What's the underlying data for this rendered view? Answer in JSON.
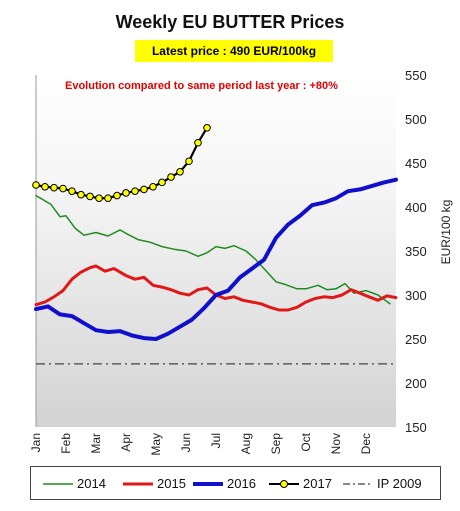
{
  "chart_data": {
    "type": "line",
    "title": "Weekly EU BUTTER Prices",
    "subtitle": "Latest price : 490 EUR/100kg",
    "annotation": "Evolution compared to same period last year : +80%",
    "ylabel": "EUR/100 kg",
    "ylim": [
      150,
      550
    ],
    "yticks": [
      "550",
      "500",
      "450",
      "400",
      "350",
      "300",
      "250",
      "200",
      "150"
    ],
    "categories": [
      "Jan",
      "Feb",
      "Mar",
      "Apr",
      "May",
      "Jun",
      "Jul",
      "Aug",
      "Sep",
      "Oct",
      "Nov",
      "Dec"
    ],
    "reference_line": {
      "name": "IP 2009",
      "value": 221.75
    },
    "series": [
      {
        "name": "2014",
        "color": "#1e8c1e",
        "style": "thin",
        "x": [
          0,
          0.5,
          0.8,
          1,
          1.3,
          1.6,
          2,
          2.4,
          2.8,
          3,
          3.4,
          3.8,
          4.2,
          4.6,
          5,
          5.4,
          5.7,
          6,
          6.3,
          6.6,
          7,
          7.3,
          7.6,
          8,
          8.3,
          8.7,
          9,
          9.4,
          9.7,
          10,
          10.3,
          10.6,
          11,
          11.4,
          11.8
        ],
        "values": [
          413,
          403,
          389,
          390,
          376,
          368,
          371,
          367,
          374,
          370,
          363,
          360,
          355,
          352,
          350,
          344,
          348,
          355,
          353,
          356,
          350,
          341,
          330,
          315,
          312,
          307,
          307,
          311,
          306,
          307,
          313,
          302,
          305,
          300,
          290
        ]
      },
      {
        "name": "2015",
        "color": "#e01818",
        "style": "medium",
        "x": [
          0,
          0.3,
          0.6,
          0.9,
          1.2,
          1.5,
          1.8,
          2,
          2.3,
          2.6,
          3,
          3.3,
          3.6,
          3.9,
          4.2,
          4.5,
          4.8,
          5.1,
          5.4,
          5.7,
          6,
          6.3,
          6.6,
          6.9,
          7.2,
          7.5,
          7.8,
          8.1,
          8.4,
          8.7,
          9,
          9.3,
          9.6,
          9.9,
          10.2,
          10.5,
          10.8,
          11.1,
          11.4,
          11.7,
          12
        ],
        "values": [
          289,
          292,
          298,
          305,
          318,
          326,
          331,
          333,
          327,
          330,
          322,
          318,
          320,
          311,
          309,
          306,
          302,
          300,
          306,
          308,
          300,
          296,
          298,
          294,
          292,
          290,
          286,
          283,
          283,
          286,
          292,
          296,
          298,
          297,
          300,
          306,
          302,
          298,
          294,
          299,
          297
        ]
      },
      {
        "name": "2016",
        "color": "#1010cc",
        "style": "thick",
        "x": [
          0,
          0.4,
          0.8,
          1.2,
          1.6,
          2,
          2.4,
          2.8,
          3.2,
          3.6,
          4,
          4.4,
          4.8,
          5.2,
          5.6,
          6,
          6.4,
          6.8,
          7.2,
          7.6,
          8,
          8.4,
          8.8,
          9.2,
          9.6,
          10,
          10.4,
          10.8,
          11.2,
          11.6,
          12
        ],
        "values": [
          284,
          287,
          278,
          276,
          268,
          260,
          258,
          259,
          254,
          251,
          250,
          256,
          264,
          272,
          285,
          300,
          305,
          320,
          330,
          340,
          365,
          380,
          390,
          402,
          405,
          410,
          418,
          420,
          424,
          428,
          431
        ]
      },
      {
        "name": "2017",
        "color": "#000000",
        "marker_color": "#ffff00",
        "style": "marker",
        "x": [
          0,
          0.3,
          0.6,
          0.9,
          1.2,
          1.5,
          1.8,
          2.1,
          2.4,
          2.7,
          3,
          3.3,
          3.6,
          3.9,
          4.2,
          4.5,
          4.8,
          5.1,
          5.4,
          5.7
        ],
        "values": [
          425,
          423,
          422,
          421,
          418,
          414,
          412,
          410,
          410,
          413,
          416,
          418,
          420,
          423,
          428,
          434,
          440,
          452,
          473,
          490
        ]
      }
    ]
  }
}
